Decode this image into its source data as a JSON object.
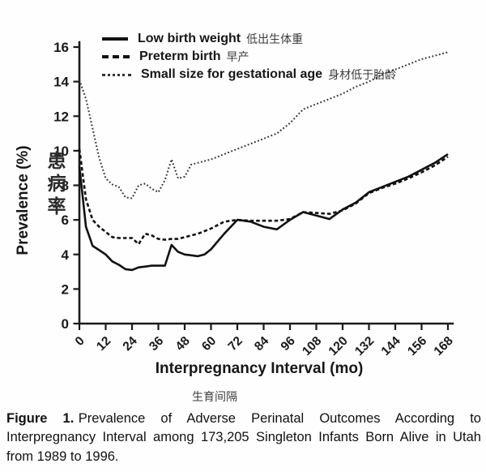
{
  "chart_data": {
    "type": "line",
    "xlabel": "Interpregnancy Interval (mo)",
    "xlabel_zh": "生育间隔",
    "ylabel": "Prevalence (%)",
    "ylabel_zh": "患病率",
    "xlim": [
      0,
      168
    ],
    "ylim": [
      0,
      16
    ],
    "x_ticks": [
      0,
      12,
      24,
      36,
      48,
      60,
      72,
      84,
      96,
      108,
      120,
      132,
      144,
      156,
      168
    ],
    "y_ticks": [
      0,
      2,
      4,
      6,
      8,
      10,
      12,
      14,
      16
    ],
    "grid": false,
    "legend_position": "top-left-inside",
    "axis_color": "#1a1a1a",
    "x": [
      0,
      3,
      6,
      9,
      12,
      15,
      18,
      21,
      24,
      27,
      30,
      33,
      36,
      39,
      42,
      45,
      48,
      51,
      54,
      57,
      60,
      66,
      72,
      78,
      84,
      90,
      96,
      102,
      108,
      114,
      120,
      126,
      132,
      138,
      144,
      150,
      156,
      162,
      168
    ],
    "series": [
      {
        "name": "Low birth weight",
        "name_zh": "低出生体重",
        "style": "solid",
        "color": "#111111",
        "values": [
          9.1,
          5.6,
          4.5,
          4.25,
          4.0,
          3.6,
          3.4,
          3.15,
          3.1,
          3.25,
          3.3,
          3.35,
          3.35,
          3.35,
          4.55,
          4.15,
          4.0,
          3.95,
          3.9,
          4.0,
          4.3,
          5.2,
          6.0,
          5.9,
          5.6,
          5.45,
          6.0,
          6.45,
          6.25,
          6.05,
          6.6,
          7.0,
          7.6,
          7.9,
          8.2,
          8.5,
          8.9,
          9.3,
          9.8
        ]
      },
      {
        "name": "Preterm birth",
        "name_zh": "早产",
        "style": "dashed",
        "color": "#111111",
        "values": [
          10.1,
          7.2,
          6.0,
          5.6,
          5.3,
          5.0,
          4.95,
          4.95,
          4.95,
          4.6,
          5.2,
          5.1,
          4.9,
          4.85,
          4.9,
          4.9,
          5.0,
          5.1,
          5.2,
          5.35,
          5.5,
          5.9,
          6.0,
          5.95,
          5.95,
          5.95,
          6.05,
          6.45,
          6.4,
          6.35,
          6.55,
          6.95,
          7.55,
          7.85,
          8.1,
          8.4,
          8.75,
          9.15,
          9.65
        ]
      },
      {
        "name": "Small size for gestational age",
        "name_zh": "身材低于胎龄",
        "style": "dotted",
        "color": "#2f2f2f",
        "values": [
          14.1,
          13.0,
          11.3,
          9.6,
          8.4,
          8.05,
          7.9,
          7.3,
          7.25,
          8.0,
          8.1,
          7.8,
          7.6,
          8.3,
          9.5,
          8.4,
          8.5,
          9.2,
          9.3,
          9.4,
          9.5,
          9.8,
          10.1,
          10.4,
          10.7,
          11.0,
          11.6,
          12.4,
          12.7,
          13.0,
          13.3,
          13.7,
          14.0,
          14.4,
          14.7,
          15.0,
          15.3,
          15.5,
          15.7
        ]
      }
    ]
  },
  "caption": {
    "label": "Figure 1.",
    "text": "Prevalence of Adverse Perinatal Outcomes According to Interpregnancy Interval among 173,205 Singleton Infants Born Alive in Utah from 1989 to 1996."
  }
}
